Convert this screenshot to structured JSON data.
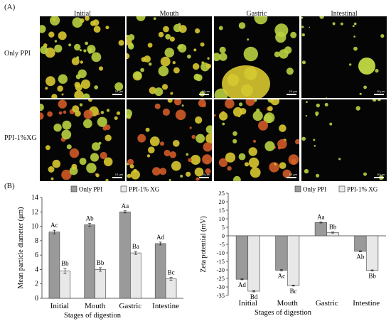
{
  "panel_a_label": "(A)",
  "panel_b_label": "(B)",
  "micrographs": {
    "columns": [
      "Initial",
      "Mouth",
      "Gastric",
      "Intestinal"
    ],
    "rows": [
      "Only PPI",
      "PPI-1%XG"
    ],
    "scale_text": "10 µm"
  },
  "colors": {
    "only_ppi_bar": "#9a9a9a",
    "xg_bar": "#e8e8e8",
    "drop_green": "#b8d040",
    "drop_yellow": "#d8c830",
    "drop_red": "#d05a28"
  },
  "chart_data": [
    {
      "type": "bar",
      "categories": [
        "Initial",
        "Mouth",
        "Gastric",
        "Intestine"
      ],
      "series": [
        {
          "name": "Only PPI",
          "values": [
            9.2,
            10.2,
            12.0,
            7.6
          ],
          "errors": [
            0.25,
            0.2,
            0.15,
            0.2
          ],
          "labels": [
            "Ac",
            "Ab",
            "Aa",
            "Ad"
          ]
        },
        {
          "name": "PPI-1% XG",
          "values": [
            3.8,
            4.0,
            6.3,
            2.7
          ],
          "errors": [
            0.35,
            0.25,
            0.2,
            0.2
          ],
          "labels": [
            "Bb",
            "Bb",
            "Ba",
            "Bc"
          ]
        }
      ],
      "xlabel": "Stages of digestion",
      "ylabel": "Mean particle diameter (μm)",
      "ylim": [
        0,
        14
      ],
      "yticks": [
        "0",
        "2",
        "4",
        "6",
        "8",
        "10",
        "12",
        "14"
      ],
      "legend": "top"
    },
    {
      "type": "bar",
      "categories": [
        "Initial",
        "Mouth",
        "Gastric",
        "Intestine"
      ],
      "series": [
        {
          "name": "Only PPI",
          "values": [
            -25.5,
            -20.2,
            7.8,
            -9.1
          ],
          "errors": [
            0.3,
            0.4,
            0.3,
            0.3
          ],
          "labels": [
            "Ad",
            "Ac",
            "Aa",
            "Ab"
          ]
        },
        {
          "name": "PPI-1% XG",
          "values": [
            -32.5,
            -29.2,
            1.9,
            -20.3
          ],
          "errors": [
            0.4,
            0.3,
            0.3,
            0.3
          ],
          "labels": [
            "Bd",
            "Bc",
            "Bb",
            "Bb"
          ]
        }
      ],
      "xlabel": "Stages of digestion",
      "ylabel": "Zeta potential (mV)",
      "ylim": [
        -35,
        25
      ],
      "yticks": [
        "-35",
        "-30",
        "-25",
        "-20",
        "-15",
        "-10",
        "-5",
        "0",
        "5",
        "10",
        "15",
        "20",
        "25"
      ],
      "legend": "top"
    }
  ]
}
